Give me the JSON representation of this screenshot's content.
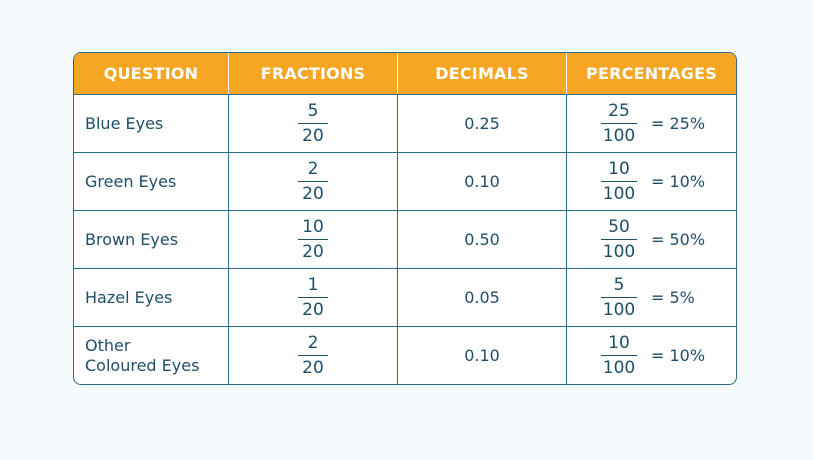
{
  "colors": {
    "header_bg": "#f6a622",
    "header_text": "#ffffff",
    "border": "#2d6a86",
    "text": "#1f4f67",
    "page_bg": "#f5fafc"
  },
  "headers": {
    "question": "QUESTION",
    "fractions": "FRACTIONS",
    "decimals": "DECIMALS",
    "percentages": "PERCENTAGES"
  },
  "rows": [
    {
      "question": "Blue Eyes",
      "fraction": {
        "num": "5",
        "den": "20"
      },
      "decimal": "0.25",
      "percentage": {
        "num": "25",
        "den": "100",
        "value": "= 25%"
      }
    },
    {
      "question": "Green Eyes",
      "fraction": {
        "num": "2",
        "den": "20"
      },
      "decimal": "0.10",
      "percentage": {
        "num": "10",
        "den": "100",
        "value": "= 10%"
      }
    },
    {
      "question": "Brown Eyes",
      "fraction": {
        "num": "10",
        "den": "20"
      },
      "decimal": "0.50",
      "percentage": {
        "num": "50",
        "den": "100",
        "value": "= 50%"
      }
    },
    {
      "question": "Hazel Eyes",
      "fraction": {
        "num": "1",
        "den": "20"
      },
      "decimal": "0.05",
      "percentage": {
        "num": "5",
        "den": "100",
        "value": "= 5%"
      }
    },
    {
      "question": "Other\nColoured Eyes",
      "fraction": {
        "num": "2",
        "den": "20"
      },
      "decimal": "0.10",
      "percentage": {
        "num": "10",
        "den": "100",
        "value": "= 10%"
      }
    }
  ]
}
